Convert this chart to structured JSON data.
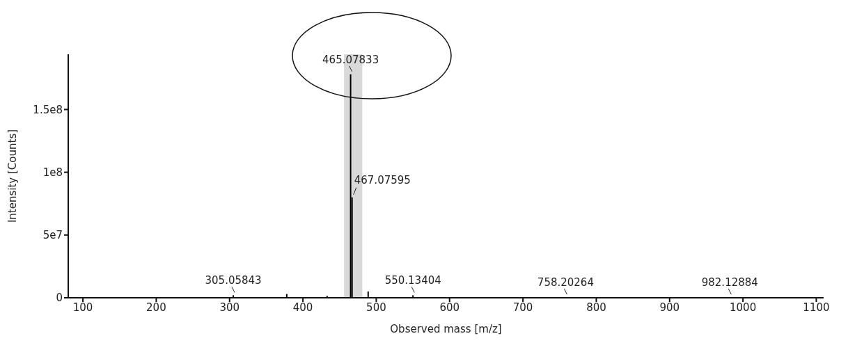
{
  "chart_data": {
    "type": "bar",
    "xlabel": "Observed mass [m/z]",
    "ylabel": "Intensity [Counts]",
    "x": [
      305.05843,
      378,
      433,
      465.07833,
      467.07595,
      489,
      550.13404,
      758.20264,
      982.12884
    ],
    "values": [
      2000000,
      3000000,
      1500000,
      178000000,
      80000000,
      5000000,
      2000000,
      500000,
      500000
    ],
    "color": "#000000",
    "xlim": [
      80,
      1110
    ],
    "xticks": [
      100,
      200,
      300,
      400,
      500,
      600,
      700,
      800,
      900,
      1000,
      1100
    ],
    "ylim": [
      0,
      194000000
    ],
    "yticks": [
      0,
      {
        "value": 50000000,
        "label": "5e7"
      },
      {
        "value": 100000000,
        "label": "1e8"
      },
      {
        "value": 150000000,
        "label": "1.5e8"
      }
    ],
    "bands": [
      {
        "axis": "x",
        "from": 456,
        "to": 481,
        "color": "#d9d9d9"
      }
    ],
    "annotations": [
      {
        "text": "305.05843",
        "x": 305.05843,
        "y": 2000000
      },
      {
        "text": "465.07833",
        "x": 465.07833,
        "y": 178000000
      },
      {
        "text": "467.07595",
        "x": 467.07595,
        "y": 80000000
      },
      {
        "text": "550.13404",
        "x": 550.13404,
        "y": 2000000
      },
      {
        "text": "758.20264",
        "x": 758.20264,
        "y": 500000
      },
      {
        "text": "982.12884",
        "x": 982.12884,
        "y": 500000
      }
    ],
    "grid": false,
    "legend": false
  }
}
